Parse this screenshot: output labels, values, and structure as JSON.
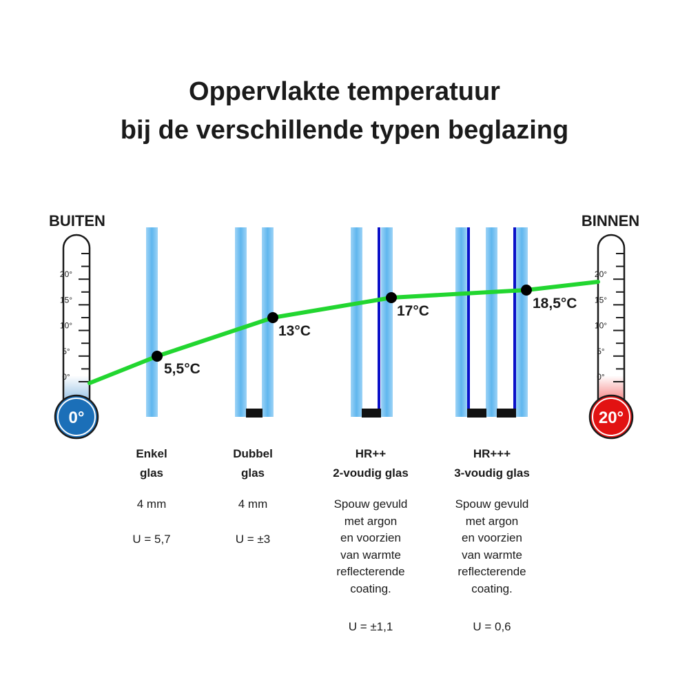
{
  "title": {
    "line1": "Oppervlakte temperatuur",
    "line2": "bij de verschillende typen beglazing"
  },
  "thermometers": {
    "left": {
      "label": "BUITEN",
      "bulb": "0°",
      "color": "#1b6fb8",
      "ticks": [
        "20°",
        "15°",
        "10°",
        "5°",
        "0°"
      ]
    },
    "right": {
      "label": "BINNEN",
      "bulb": "20°",
      "color": "#e21212",
      "ticks": [
        "20°",
        "15°",
        "10°",
        "5°",
        "0°"
      ]
    }
  },
  "points": [
    "5,5°C",
    "13°C",
    "17°C",
    "18,5°C"
  ],
  "colors": {
    "line": "#22d630",
    "glass": "#7cc4f2",
    "coating": "#0a10c8",
    "spacer": "#111111"
  },
  "columns": [
    {
      "name1": "Enkel",
      "name2": "glas",
      "thickness": "4 mm",
      "desc": [],
      "u": "U = 5,7"
    },
    {
      "name1": "Dubbel",
      "name2": "glas",
      "thickness": "4 mm",
      "desc": [],
      "u": "U = ±3"
    },
    {
      "name1": "HR++",
      "name2": "2-voudig glas",
      "thickness": "",
      "desc": [
        "Spouw gevuld",
        "met argon",
        "en voorzien",
        "van warmte",
        "reflecterende",
        "coating."
      ],
      "u": "U = ±1,1"
    },
    {
      "name1": "HR+++",
      "name2": "3-voudig glas",
      "thickness": "",
      "desc": [
        "Spouw gevuld",
        "met argon",
        "en voorzien",
        "van warmte",
        "reflecterende",
        "coating."
      ],
      "u": "U = 0,6"
    }
  ]
}
